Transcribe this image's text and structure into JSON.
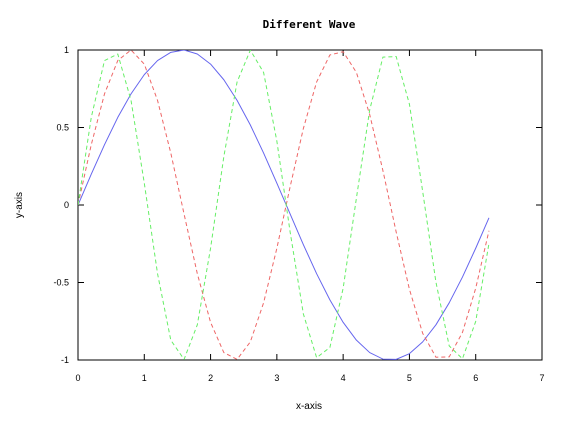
{
  "chart_data": {
    "type": "line",
    "title": "Different Wave",
    "xlabel": "x-axis",
    "ylabel": "y-axis",
    "xlim": [
      0,
      7
    ],
    "ylim": [
      -1,
      1
    ],
    "xticks": [
      0,
      1,
      2,
      3,
      4,
      5,
      6,
      7
    ],
    "yticks": [
      -1,
      -0.5,
      0,
      0.5,
      1
    ],
    "xtick_labels": [
      "0",
      "1",
      "2",
      "3",
      "4",
      "5",
      "6",
      "7"
    ],
    "ytick_labels": [
      "-1",
      "-0.5",
      "0",
      "0.5",
      "1"
    ],
    "grid": false,
    "series": [
      {
        "function": "sin(x)",
        "x": [
          0,
          0.2,
          0.4,
          0.6,
          0.8,
          1,
          1.2,
          1.4,
          1.6,
          1.8,
          2,
          2.2,
          2.4,
          2.6,
          2.8,
          3,
          3.2,
          3.4,
          3.6,
          3.8,
          4,
          4.2,
          4.4,
          4.6,
          4.8,
          5,
          5.2,
          5.4,
          5.6,
          5.8,
          6,
          6.2
        ],
        "y": [
          0,
          0.199,
          0.389,
          0.565,
          0.717,
          0.841,
          0.932,
          0.985,
          1.0,
          0.974,
          0.909,
          0.808,
          0.675,
          0.516,
          0.335,
          0.141,
          -0.058,
          -0.256,
          -0.443,
          -0.612,
          -0.757,
          -0.872,
          -0.952,
          -0.994,
          -0.996,
          -0.959,
          -0.883,
          -0.773,
          -0.631,
          -0.465,
          -0.279,
          -0.083
        ],
        "color": "#6666ee",
        "style": "solid"
      },
      {
        "function": "sin(2x)",
        "x": [
          0,
          0.2,
          0.4,
          0.6,
          0.8,
          1,
          1.2,
          1.4,
          1.6,
          1.8,
          2,
          2.2,
          2.4,
          2.6,
          2.8,
          3,
          3.2,
          3.4,
          3.6,
          3.8,
          4,
          4.2,
          4.4,
          4.6,
          4.8,
          5,
          5.2,
          5.4,
          5.6,
          5.8,
          6,
          6.2
        ],
        "y": [
          0,
          0.389,
          0.717,
          0.932,
          1.0,
          0.909,
          0.675,
          0.335,
          -0.058,
          -0.443,
          -0.757,
          -0.952,
          -0.996,
          -0.883,
          -0.631,
          -0.279,
          0.117,
          0.494,
          0.794,
          0.968,
          0.989,
          0.855,
          0.585,
          0.222,
          -0.174,
          -0.544,
          -0.828,
          -0.982,
          -0.98,
          -0.822,
          -0.537,
          -0.166
        ],
        "color": "#ee6666",
        "style": "dashed"
      },
      {
        "function": "sin(3x)",
        "x": [
          0,
          0.2,
          0.4,
          0.6,
          0.8,
          1,
          1.2,
          1.4,
          1.6,
          1.8,
          2,
          2.2,
          2.4,
          2.6,
          2.8,
          3,
          3.2,
          3.4,
          3.6,
          3.8,
          4,
          4.2,
          4.4,
          4.6,
          4.8,
          5,
          5.2,
          5.4,
          5.6,
          5.8,
          6,
          6.2
        ],
        "y": [
          0,
          0.565,
          0.932,
          0.974,
          0.675,
          0.141,
          -0.443,
          -0.872,
          -0.996,
          -0.773,
          -0.279,
          0.312,
          0.794,
          0.999,
          0.855,
          0.412,
          -0.173,
          -0.703,
          -0.985,
          -0.919,
          -0.537,
          0.044,
          0.612,
          0.954,
          0.958,
          0.65,
          0.087,
          -0.498,
          -0.909,
          -0.992,
          -0.751,
          -0.248
        ],
        "color": "#66ee66",
        "style": "dashed"
      }
    ]
  }
}
